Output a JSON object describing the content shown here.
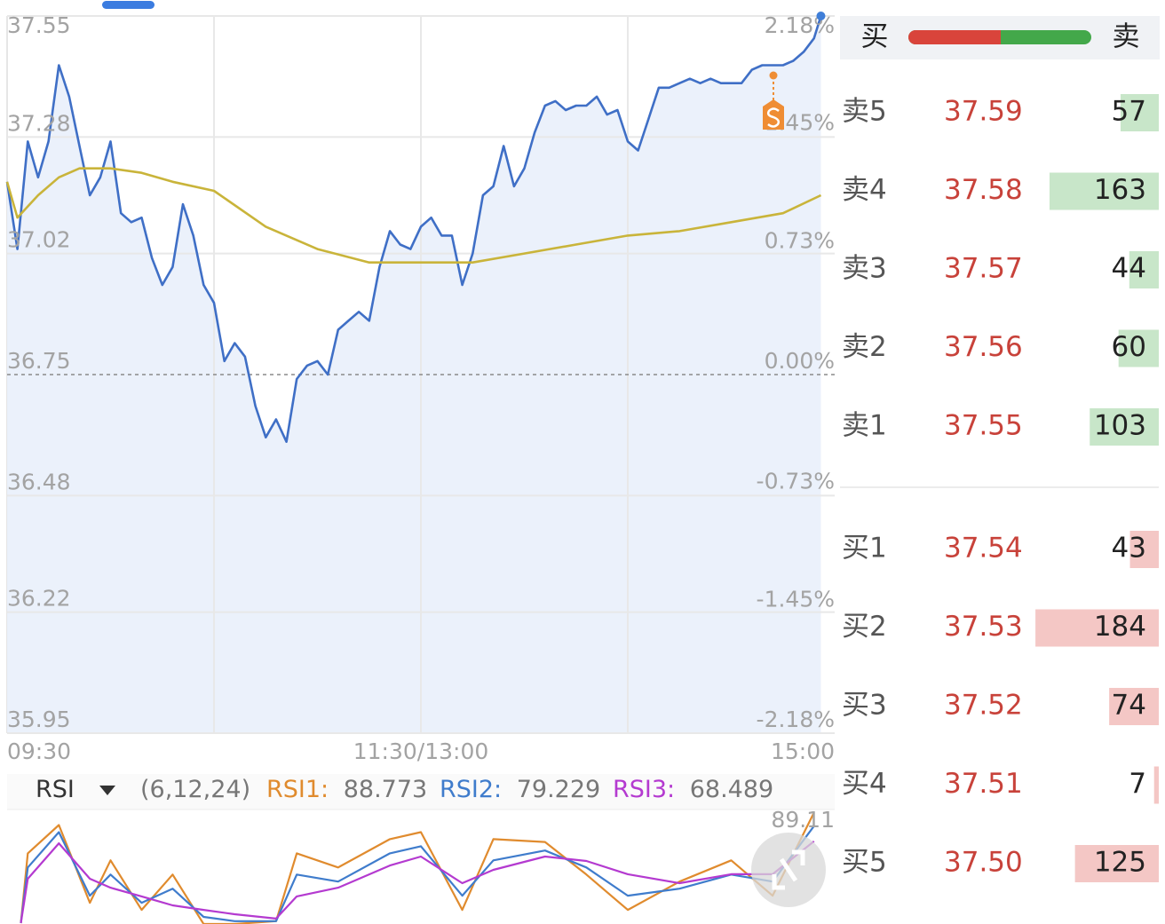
{
  "chart_data": [
    {
      "type": "line",
      "xlim": [
        0,
        240
      ],
      "xticks": [
        {
          "value": 0,
          "label": "09:30"
        },
        {
          "value": 120,
          "label": "11:30/13:00"
        },
        {
          "value": 240,
          "label": "15:00"
        }
      ],
      "ylim": [
        35.95,
        37.55
      ],
      "yticks": [
        37.55,
        37.28,
        37.02,
        36.75,
        36.48,
        36.22,
        35.95
      ],
      "y2lim": [
        -2.18,
        2.18
      ],
      "y2ticks": [
        {
          "value": 2.18,
          "label": "2.18%"
        },
        {
          "value": 1.45,
          "label": "1.45%"
        },
        {
          "value": 0.73,
          "label": "0.73%"
        },
        {
          "value": 0,
          "label": "0.00%"
        },
        {
          "value": -0.73,
          "label": "-0.73%"
        },
        {
          "value": -1.45,
          "label": "-1.45%"
        },
        {
          "value": -2.18,
          "label": "-2.18%"
        }
      ],
      "grid": true,
      "series": [
        {
          "color": "#3f6fc6",
          "x": [
            0,
            3,
            6,
            9,
            12,
            15,
            18,
            21,
            24,
            27,
            30,
            33,
            36,
            39,
            42,
            45,
            48,
            51,
            54,
            57,
            60,
            63,
            66,
            69,
            72,
            75,
            78,
            81,
            84,
            87,
            90,
            93,
            96,
            99,
            102,
            105,
            108,
            111,
            114,
            117,
            120,
            123,
            126,
            129,
            132,
            135,
            138,
            141,
            144,
            147,
            150,
            153,
            156,
            159,
            162,
            165,
            168,
            171,
            174,
            177,
            180,
            183,
            186,
            189,
            192,
            195,
            198,
            201,
            204,
            207,
            210,
            213,
            216,
            219,
            222,
            225,
            228,
            231,
            234,
            236
          ],
          "values": [
            37.18,
            37.03,
            37.27,
            37.19,
            37.27,
            37.44,
            37.37,
            37.26,
            37.15,
            37.19,
            37.27,
            37.11,
            37.09,
            37.1,
            37.01,
            36.95,
            36.99,
            37.13,
            37.06,
            36.95,
            36.91,
            36.78,
            36.82,
            36.79,
            36.68,
            36.61,
            36.65,
            36.6,
            36.74,
            36.77,
            36.78,
            36.75,
            36.85,
            36.87,
            36.89,
            36.87,
            36.99,
            37.07,
            37.04,
            37.03,
            37.08,
            37.1,
            37.06,
            37.06,
            36.95,
            37.02,
            37.15,
            37.17,
            37.26,
            37.17,
            37.21,
            37.29,
            37.35,
            37.36,
            37.34,
            37.35,
            37.35,
            37.37,
            37.33,
            37.34,
            37.27,
            37.25,
            37.32,
            37.39,
            37.39,
            37.4,
            37.41,
            37.4,
            37.41,
            37.4,
            37.4,
            37.4,
            37.43,
            37.44,
            37.44,
            37.44,
            37.45,
            37.47,
            37.5,
            37.55
          ]
        },
        {
          "color": "#c9b43a",
          "x": [
            0,
            3,
            9,
            15,
            21,
            30,
            39,
            48,
            60,
            75,
            90,
            105,
            120,
            135,
            150,
            165,
            180,
            195,
            210,
            225,
            236
          ],
          "values": [
            37.18,
            37.1,
            37.15,
            37.19,
            37.21,
            37.21,
            37.2,
            37.18,
            37.16,
            37.08,
            37.03,
            37.0,
            37.0,
            37.0,
            37.02,
            37.04,
            37.06,
            37.07,
            37.09,
            37.11,
            37.15
          ]
        }
      ]
    },
    {
      "type": "line",
      "title": "RSI",
      "subtitle": "(6,12,24)",
      "xlim": [
        0,
        240
      ],
      "ylim": [
        10,
        89.11
      ],
      "yticks": [
        89.11
      ],
      "series": [
        {
          "name": "RSI1:",
          "color": "#e08b2e",
          "x": [
            4,
            6,
            15,
            24,
            30,
            39,
            48,
            57,
            66,
            78,
            84,
            96,
            111,
            120,
            132,
            141,
            156,
            168,
            180,
            195,
            210,
            222,
            234
          ],
          "values": [
            10.6,
            60,
            80,
            25,
            55,
            20,
            45,
            10,
            10,
            12,
            60,
            50,
            70,
            75,
            20,
            70,
            68,
            45,
            20,
            40,
            55,
            30,
            88.773
          ]
        },
        {
          "name": "RSI2:",
          "color": "#3f7ccc",
          "x": [
            4,
            6,
            15,
            24,
            30,
            39,
            48,
            57,
            66,
            78,
            84,
            96,
            111,
            120,
            132,
            141,
            156,
            168,
            180,
            195,
            210,
            222,
            234
          ],
          "values": [
            10.6,
            50,
            75,
            30,
            45,
            25,
            35,
            15,
            12,
            12,
            45,
            40,
            60,
            65,
            30,
            55,
            62,
            50,
            30,
            35,
            45,
            40,
            79.229
          ]
        },
        {
          "name": "RSI3:",
          "color": "#b43ad0",
          "x": [
            4,
            6,
            15,
            24,
            30,
            39,
            48,
            57,
            66,
            78,
            84,
            96,
            111,
            120,
            132,
            141,
            156,
            168,
            180,
            195,
            210,
            222,
            234
          ],
          "values": [
            10.6,
            42.0,
            67.1,
            42.0,
            35.7,
            29.5,
            23.2,
            20.0,
            16.9,
            13.8,
            29.5,
            35.7,
            51.4,
            57.7,
            38.9,
            48.3,
            57.7,
            54.6,
            45.2,
            38.9,
            45.2,
            45.2,
            68.489
          ]
        }
      ]
    }
  ],
  "order_book": {
    "header": {
      "buy": "买",
      "sell": "卖"
    },
    "asks": [
      {
        "label": "卖5",
        "price": "37.59",
        "volume": 57
      },
      {
        "label": "卖4",
        "price": "37.58",
        "volume": 163
      },
      {
        "label": "卖3",
        "price": "37.57",
        "volume": 44
      },
      {
        "label": "卖2",
        "price": "37.56",
        "volume": 60
      },
      {
        "label": "卖1",
        "price": "37.55",
        "volume": 103
      }
    ],
    "bids": [
      {
        "label": "买1",
        "price": "37.54",
        "volume": 43
      },
      {
        "label": "买2",
        "price": "37.53",
        "volume": 184
      },
      {
        "label": "买3",
        "price": "37.52",
        "volume": 74
      },
      {
        "label": "买4",
        "price": "37.51",
        "volume": 7
      },
      {
        "label": "买5",
        "price": "37.50",
        "volume": 125
      }
    ]
  }
}
